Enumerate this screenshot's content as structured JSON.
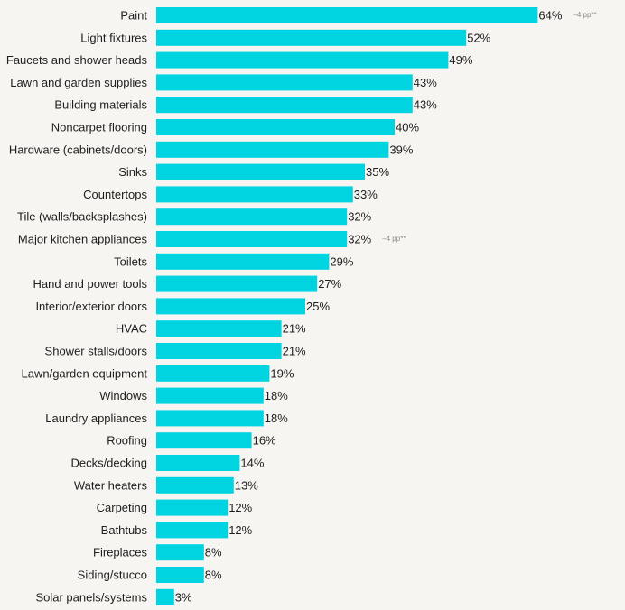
{
  "chart_data": {
    "type": "bar",
    "orientation": "horizontal",
    "bar_color": "#00d4e0",
    "categories": [
      "Paint",
      "Light fixtures",
      "Faucets and shower heads",
      "Lawn and garden supplies",
      "Building materials",
      "Noncarpet flooring",
      "Hardware (cabinets/doors)",
      "Sinks",
      "Countertops",
      "Tile (walls/backsplashes)",
      "Major kitchen appliances",
      "Toilets",
      "Hand and power tools",
      "Interior/exterior doors",
      "HVAC",
      "Shower stalls/doors",
      "Lawn/garden equipment",
      "Windows",
      "Laundry appliances",
      "Roofing",
      "Decks/decking",
      "Water heaters",
      "Carpeting",
      "Bathtubs",
      "Fireplaces",
      "Siding/stucco",
      "Solar panels/systems"
    ],
    "values": [
      64,
      52,
      49,
      43,
      43,
      40,
      39,
      35,
      33,
      32,
      32,
      29,
      27,
      25,
      21,
      21,
      19,
      18,
      18,
      16,
      14,
      13,
      12,
      12,
      8,
      8,
      3
    ],
    "value_labels": [
      "64%",
      "52%",
      "49%",
      "43%",
      "43%",
      "40%",
      "39%",
      "35%",
      "33%",
      "32%",
      "32%",
      "29%",
      "27%",
      "25%",
      "21%",
      "21%",
      "19%",
      "18%",
      "18%",
      "16%",
      "14%",
      "13%",
      "12%",
      "12%",
      "8%",
      "8%",
      "3%"
    ],
    "annotations": [
      {
        "category": "Paint",
        "text": "–4 pp**"
      },
      {
        "category": "Major kitchen appliances",
        "text": "–4 pp**"
      }
    ],
    "xlim": [
      0,
      100
    ],
    "grid": false,
    "legend": "none"
  }
}
